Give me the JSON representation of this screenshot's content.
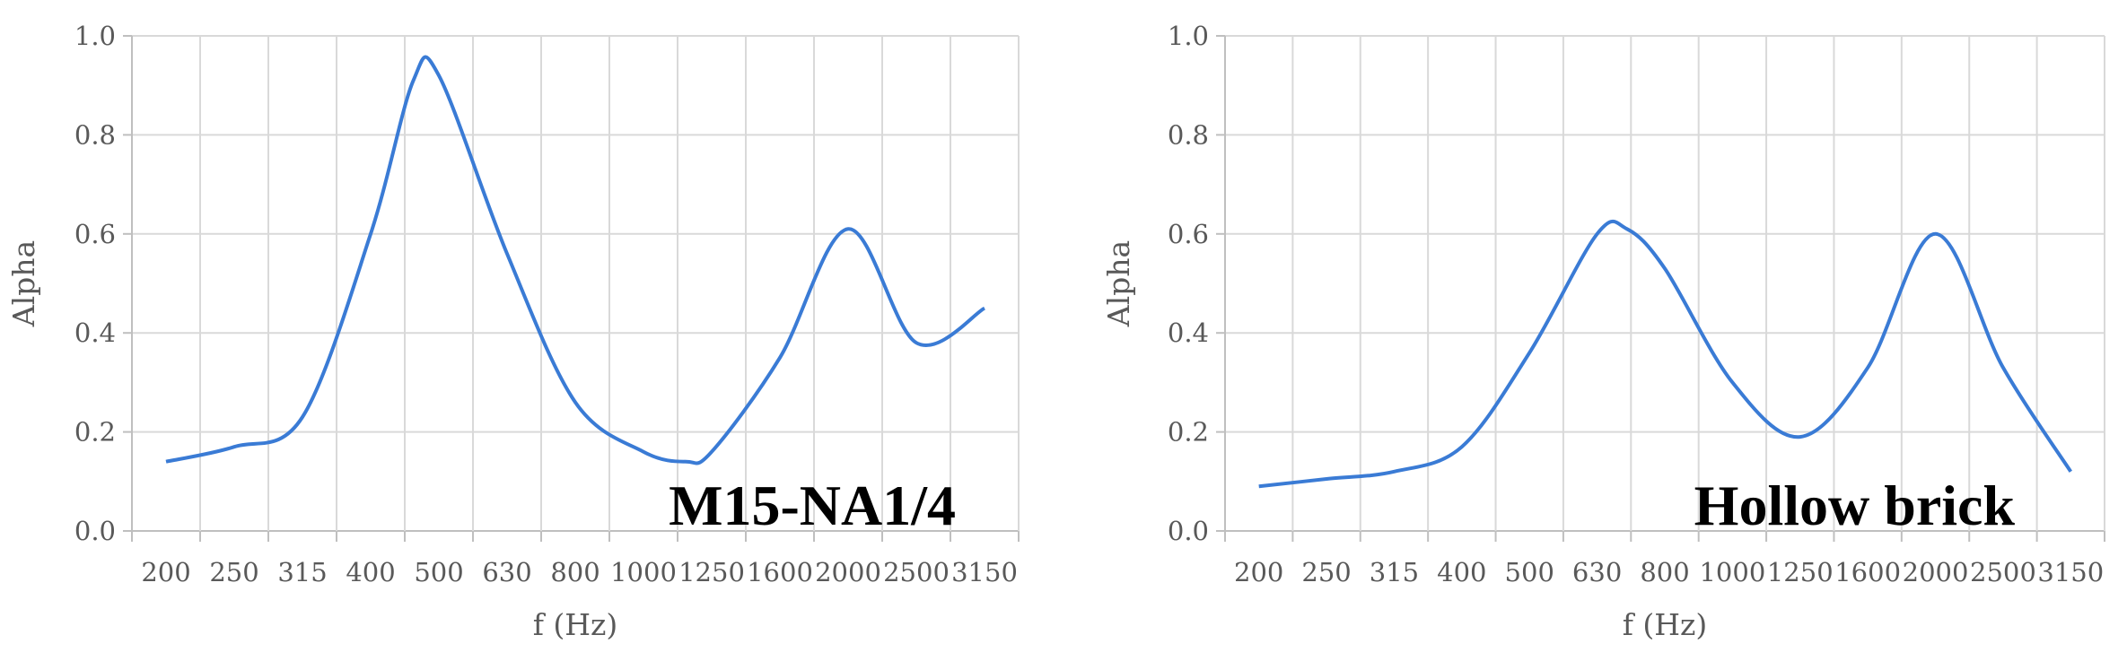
{
  "colors": {
    "line": "#3a7bd5",
    "grid": "#d9d9d9",
    "text": "#595959"
  },
  "chart_data": [
    {
      "type": "line",
      "title": "",
      "annotation": "M15-NA1/4",
      "xlabel": "f (Hz)",
      "ylabel": "Alpha",
      "categories": [
        "200",
        "250",
        "315",
        "400",
        "500",
        "630",
        "800",
        "1000",
        "1250",
        "1600",
        "2000",
        "2500",
        "3150"
      ],
      "ylim": [
        0,
        1.0
      ],
      "yticks": [
        "0.0",
        "0.2",
        "0.4",
        "0.6",
        "0.8",
        "1.0"
      ],
      "grid": true,
      "x": [
        200,
        250,
        315,
        400,
        460,
        500,
        630,
        800,
        1000,
        1150,
        1250,
        1600,
        2000,
        2500,
        3150
      ],
      "y": [
        0.14,
        0.17,
        0.23,
        0.6,
        0.91,
        0.92,
        0.56,
        0.26,
        0.16,
        0.14,
        0.16,
        0.35,
        0.61,
        0.38,
        0.45
      ]
    },
    {
      "type": "line",
      "title": "",
      "annotation": "Hollow brick",
      "xlabel": "f (Hz)",
      "ylabel": "Alpha",
      "categories": [
        "200",
        "250",
        "315",
        "400",
        "500",
        "630",
        "800",
        "1000",
        "1250",
        "1600",
        "2000",
        "2500",
        "3150"
      ],
      "ylim": [
        0,
        1.0
      ],
      "yticks": [
        "0.0",
        "0.2",
        "0.4",
        "0.6",
        "0.8",
        "1.0"
      ],
      "grid": true,
      "x": [
        200,
        250,
        315,
        400,
        500,
        630,
        700,
        800,
        1000,
        1250,
        1600,
        2000,
        2500,
        3150
      ],
      "y": [
        0.09,
        0.105,
        0.12,
        0.17,
        0.36,
        0.6,
        0.61,
        0.53,
        0.3,
        0.19,
        0.33,
        0.6,
        0.33,
        0.12
      ]
    }
  ]
}
